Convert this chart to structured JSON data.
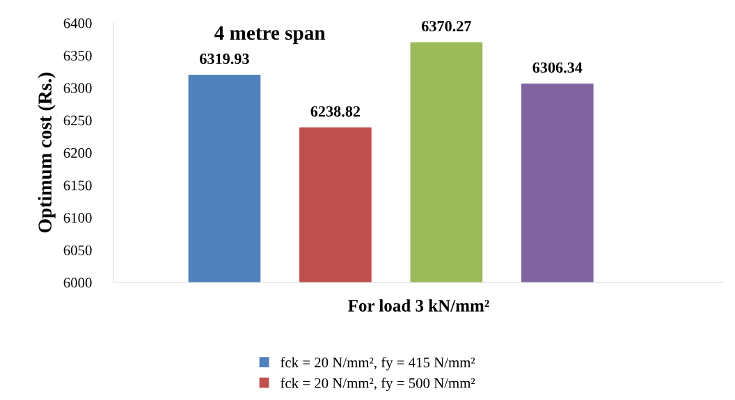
{
  "chart_data": {
    "type": "bar",
    "title": "4 metre span",
    "xlabel": "For load 3 kN/mm²",
    "ylabel": "Optimum cost (Rs.)",
    "categories": [
      null
    ],
    "series": [
      {
        "name": "fck = 20 N/mm², fy = 415 N/mm²",
        "color": "#4f81bd",
        "values": [
          6319.93
        ]
      },
      {
        "name": "fck = 20 N/mm², fy = 500 N/mm²",
        "color": "#c0504d",
        "values": [
          6238.82
        ]
      },
      {
        "color": "#9bbb59",
        "values": [
          6370.27
        ]
      },
      {
        "color": "#8064a2",
        "values": [
          6306.34
        ]
      }
    ],
    "ylim": [
      6000,
      6400
    ],
    "yticks": [
      6000,
      6050,
      6100,
      6150,
      6200,
      6250,
      6300,
      6350,
      6400
    ],
    "data_labels": true,
    "grid": false,
    "legend": "bottom"
  }
}
